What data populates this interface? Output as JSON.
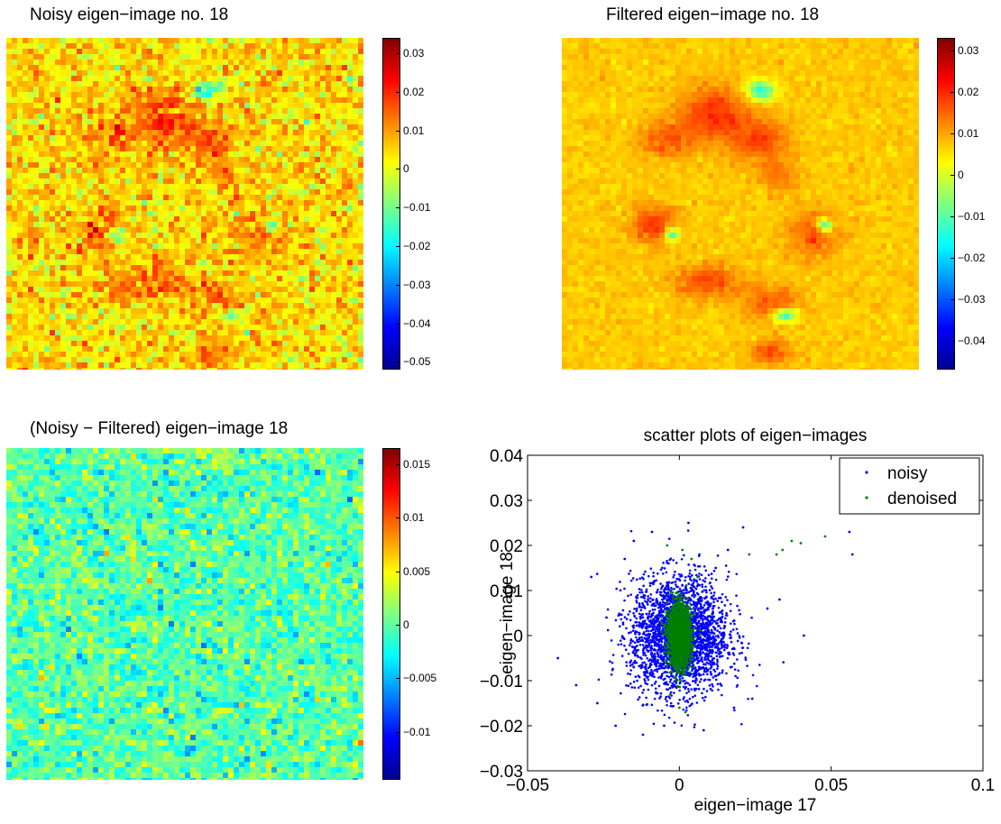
{
  "colors": {
    "jet": [
      "#00008f",
      "#0000ff",
      "#0080ff",
      "#00ffff",
      "#80ff80",
      "#ffff00",
      "#ff8000",
      "#ff0000",
      "#800000"
    ],
    "noisy": "#0000ff",
    "denoised": "#007f00"
  },
  "panels": {
    "noisy": {
      "title": "Noisy eigen−image no. 18",
      "ticks": [
        "0.03",
        "0.02",
        "0.01",
        "0",
        "−0.01",
        "−0.02",
        "−0.03",
        "−0.04",
        "−0.05"
      ]
    },
    "filtered": {
      "title": "Filtered eigen−image no. 18",
      "ticks": [
        "0.03",
        "0.02",
        "0.01",
        "0",
        "−0.01",
        "−0.02",
        "−0.03",
        "−0.04"
      ]
    },
    "diff": {
      "title": "(Noisy − Filtered) eigen−image 18",
      "ticks": [
        "0.015",
        "0.01",
        "0.005",
        "0",
        "−0.005",
        "−0.01"
      ]
    }
  },
  "chart_data": [
    {
      "type": "heatmap",
      "title": "Noisy eigen−image no. 18",
      "colormap": "jet",
      "colorbar_range": [
        -0.052,
        0.034
      ],
      "colorbar_ticks": [
        0.03,
        0.02,
        0.01,
        0,
        -0.01,
        -0.02,
        -0.03,
        -0.04,
        -0.05
      ]
    },
    {
      "type": "heatmap",
      "title": "Filtered eigen−image no. 18",
      "colormap": "jet",
      "colorbar_range": [
        -0.047,
        0.033
      ],
      "colorbar_ticks": [
        0.03,
        0.02,
        0.01,
        0,
        -0.01,
        -0.02,
        -0.03,
        -0.04
      ]
    },
    {
      "type": "heatmap",
      "title": "(Noisy − Filtered) eigen−image 18",
      "colormap": "jet",
      "colorbar_range": [
        -0.0145,
        0.0165
      ],
      "colorbar_ticks": [
        0.015,
        0.01,
        0.005,
        0,
        -0.005,
        -0.01
      ]
    },
    {
      "type": "scatter",
      "title": "scatter plots of eigen−images",
      "xlabel": "eigen−image 17",
      "ylabel": "eigen−image 18",
      "xlim": [
        -0.05,
        0.1
      ],
      "ylim": [
        -0.03,
        0.04
      ],
      "xticks": [
        "−0.05",
        "0",
        "0.05",
        "0.1"
      ],
      "yticks": [
        "0.04",
        "0.03",
        "0.02",
        "0.01",
        "0",
        "−0.01",
        "−0.02",
        "−0.03"
      ],
      "legend": "top-right",
      "grid": false,
      "series": [
        {
          "name": "noisy",
          "color": "#0000ff",
          "cloud_center": [
            0,
            0
          ],
          "cloud_spread": [
            0.008,
            0.0065
          ],
          "points": [
            [
              -0.04,
              -0.005
            ],
            [
              -0.034,
              -0.011
            ],
            [
              -0.029,
              0.013
            ],
            [
              -0.027,
              -0.015
            ],
            [
              -0.024,
              0.004
            ],
            [
              -0.021,
              -0.02
            ],
            [
              -0.018,
              0.017
            ],
            [
              -0.015,
              0.021
            ],
            [
              -0.012,
              -0.022
            ],
            [
              -0.009,
              0.023
            ],
            [
              0.003,
              0.025
            ],
            [
              0.008,
              -0.021
            ],
            [
              0.016,
              0.019
            ],
            [
              0.021,
              0.024
            ],
            [
              0.024,
              -0.014
            ],
            [
              0.029,
              0.006
            ],
            [
              0.033,
              0.008
            ],
            [
              0.041,
              0.0
            ],
            [
              0.056,
              0.023
            ],
            [
              0.057,
              0.018
            ],
            [
              0.018,
              -0.016
            ],
            [
              -0.005,
              -0.02
            ],
            [
              0.012,
              0.015
            ]
          ]
        },
        {
          "name": "denoised",
          "color": "#007f00",
          "cloud_center": [
            0,
            0
          ],
          "cloud_spread": [
            0.0035,
            0.0045
          ],
          "points": [
            [
              0.023,
              0.018
            ],
            [
              0.032,
              0.018
            ],
            [
              0.034,
              0.019
            ],
            [
              0.037,
              0.021
            ],
            [
              0.04,
              0.0205
            ],
            [
              0.048,
              0.022
            ],
            [
              -0.004,
              0.02
            ],
            [
              0.001,
              0.019
            ],
            [
              0.004,
              0.017
            ],
            [
              0.0,
              -0.016
            ],
            [
              0.002,
              -0.017
            ],
            [
              -0.003,
              -0.013
            ],
            [
              0.006,
              0.013
            ]
          ]
        }
      ]
    }
  ],
  "legend": {
    "noisy": "noisy",
    "denoised": "denoised"
  }
}
